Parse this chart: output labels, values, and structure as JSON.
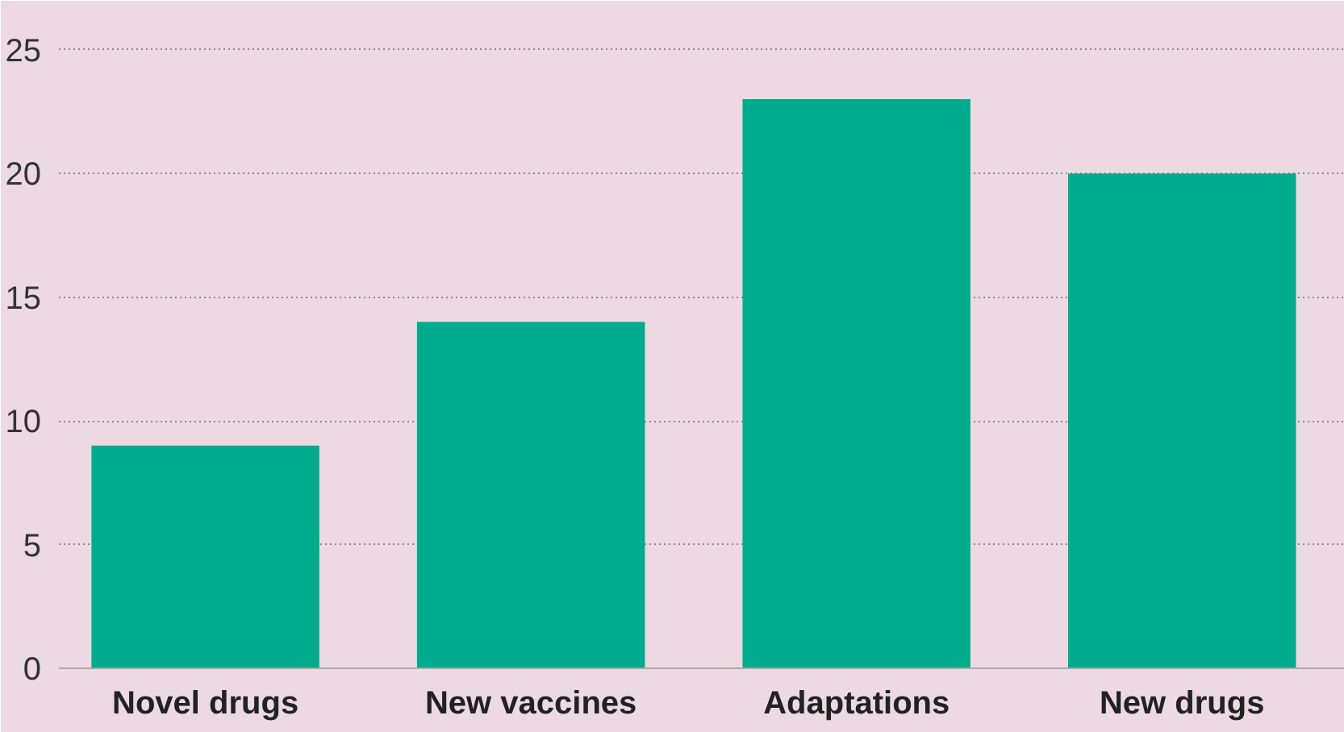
{
  "chart_data": {
    "type": "bar",
    "categories": [
      "Novel drugs",
      "New vaccines",
      "Adaptations",
      "New drugs"
    ],
    "values": [
      9,
      14,
      23,
      20
    ],
    "color": "#00ab8e",
    "ylim": [
      0,
      26
    ],
    "yticks": [
      0,
      5,
      10,
      15,
      20,
      25
    ],
    "grid": "y"
  }
}
